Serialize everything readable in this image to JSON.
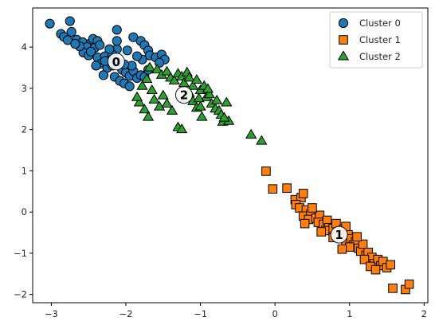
{
  "chart_data": {
    "type": "scatter",
    "title": "",
    "xlabel": "",
    "ylabel": "",
    "xlim": [
      -3.25,
      2.05
    ],
    "ylim": [
      -2.2,
      4.95
    ],
    "xticks": [
      -3,
      -2,
      -1,
      0,
      1,
      2
    ],
    "yticks": [
      -2,
      -1,
      0,
      1,
      2,
      3,
      4
    ],
    "grid": false,
    "legend": "top-right",
    "series": [
      {
        "name": "Cluster 0",
        "marker": "circle",
        "color": "#1f77b4",
        "points": [
          [
            -3.02,
            4.57
          ],
          [
            -2.75,
            4.63
          ],
          [
            -2.87,
            4.32
          ],
          [
            -2.83,
            4.25
          ],
          [
            -2.73,
            4.37
          ],
          [
            -2.78,
            4.17
          ],
          [
            -2.66,
            4.18
          ],
          [
            -2.58,
            4.12
          ],
          [
            -2.47,
            4.1
          ],
          [
            -2.44,
            4.2
          ],
          [
            -2.38,
            4.15
          ],
          [
            -2.52,
            4.0
          ],
          [
            -2.42,
            3.98
          ],
          [
            -2.35,
            4.05
          ],
          [
            -2.57,
            3.87
          ],
          [
            -2.5,
            3.8
          ],
          [
            -2.47,
            3.89
          ],
          [
            -2.38,
            3.75
          ],
          [
            -2.28,
            3.78
          ],
          [
            -2.2,
            3.72
          ],
          [
            -2.33,
            3.6
          ],
          [
            -2.25,
            3.5
          ],
          [
            -2.18,
            3.55
          ],
          [
            -2.1,
            3.62
          ],
          [
            -2.05,
            3.45
          ],
          [
            -2.0,
            3.38
          ],
          [
            -1.95,
            3.3
          ],
          [
            -1.9,
            3.42
          ],
          [
            -1.85,
            3.25
          ],
          [
            -1.8,
            3.32
          ],
          [
            -1.75,
            3.28
          ],
          [
            -2.15,
            3.28
          ],
          [
            -2.08,
            3.18
          ],
          [
            -2.02,
            3.12
          ],
          [
            -1.95,
            3.05
          ],
          [
            -2.3,
            3.32
          ],
          [
            -2.4,
            3.55
          ],
          [
            -2.12,
            3.95
          ],
          [
            -2.12,
            4.42
          ],
          [
            -2.12,
            4.15
          ],
          [
            -1.98,
            3.92
          ],
          [
            -1.9,
            4.24
          ],
          [
            -1.8,
            4.15
          ],
          [
            -1.75,
            4.05
          ],
          [
            -1.7,
            3.92
          ],
          [
            -1.68,
            3.8
          ],
          [
            -1.6,
            3.75
          ],
          [
            -1.52,
            3.82
          ],
          [
            -1.48,
            3.7
          ],
          [
            -1.55,
            3.62
          ],
          [
            -1.78,
            3.7
          ],
          [
            -1.7,
            3.45
          ],
          [
            -1.92,
            3.55
          ],
          [
            -1.85,
            3.78
          ],
          [
            -2.18,
            3.82
          ],
          [
            -2.22,
            3.95
          ],
          [
            -2.62,
            4.02
          ],
          [
            -2.68,
            4.08
          ],
          [
            -2.28,
            3.66
          ],
          [
            -2.02,
            3.58
          ]
        ]
      },
      {
        "name": "Cluster 1",
        "marker": "square",
        "color": "#ff7f0e",
        "points": [
          [
            -0.12,
            0.99
          ],
          [
            -0.03,
            0.56
          ],
          [
            0.16,
            0.58
          ],
          [
            0.27,
            0.3
          ],
          [
            0.35,
            0.35
          ],
          [
            0.38,
            0.45
          ],
          [
            0.28,
            0.18
          ],
          [
            0.33,
            0.1
          ],
          [
            0.42,
            0.05
          ],
          [
            0.38,
            -0.1
          ],
          [
            0.48,
            -0.05
          ],
          [
            0.45,
            -0.18
          ],
          [
            0.55,
            -0.15
          ],
          [
            0.6,
            -0.08
          ],
          [
            0.58,
            -0.25
          ],
          [
            0.65,
            -0.3
          ],
          [
            0.7,
            -0.2
          ],
          [
            0.72,
            -0.38
          ],
          [
            0.68,
            -0.45
          ],
          [
            0.78,
            -0.4
          ],
          [
            0.82,
            -0.28
          ],
          [
            0.85,
            -0.5
          ],
          [
            0.88,
            -0.6
          ],
          [
            0.92,
            -0.42
          ],
          [
            0.95,
            -0.7
          ],
          [
            0.98,
            -0.55
          ],
          [
            1.02,
            -0.65
          ],
          [
            1.05,
            -0.8
          ],
          [
            1.08,
            -0.72
          ],
          [
            1.12,
            -0.88
          ],
          [
            1.15,
            -0.95
          ],
          [
            1.18,
            -0.78
          ],
          [
            1.22,
            -1.05
          ],
          [
            1.25,
            -0.98
          ],
          [
            1.3,
            -1.1
          ],
          [
            1.33,
            -1.25
          ],
          [
            1.38,
            -1.15
          ],
          [
            1.42,
            -1.3
          ],
          [
            1.45,
            -1.2
          ],
          [
            1.5,
            -1.35
          ],
          [
            1.55,
            -1.28
          ],
          [
            1.58,
            -1.85
          ],
          [
            1.75,
            -1.88
          ],
          [
            1.8,
            -1.75
          ],
          [
            0.95,
            -0.35
          ],
          [
            1.0,
            -0.85
          ],
          [
            0.78,
            -0.62
          ],
          [
            0.62,
            -0.48
          ],
          [
            0.5,
            0.1
          ],
          [
            0.4,
            -0.28
          ],
          [
            1.1,
            -0.6
          ],
          [
            1.2,
            -1.15
          ],
          [
            1.28,
            -1.32
          ],
          [
            0.9,
            -0.9
          ],
          [
            1.35,
            -1.4
          ]
        ]
      },
      {
        "name": "Cluster 2",
        "marker": "triangle",
        "color": "#2ca02c",
        "points": [
          [
            -1.72,
            3.22
          ],
          [
            -1.68,
            3.5
          ],
          [
            -1.58,
            3.45
          ],
          [
            -1.52,
            3.32
          ],
          [
            -1.45,
            3.4
          ],
          [
            -1.4,
            3.25
          ],
          [
            -1.35,
            3.18
          ],
          [
            -1.3,
            3.35
          ],
          [
            -1.25,
            3.28
          ],
          [
            -1.22,
            3.12
          ],
          [
            -1.18,
            3.38
          ],
          [
            -1.15,
            3.25
          ],
          [
            -1.1,
            3.05
          ],
          [
            -1.05,
            3.2
          ],
          [
            -1.0,
            2.95
          ],
          [
            -0.95,
            3.05
          ],
          [
            -0.92,
            2.78
          ],
          [
            -0.88,
            2.85
          ],
          [
            -0.85,
            2.62
          ],
          [
            -0.8,
            2.5
          ],
          [
            -0.78,
            2.7
          ],
          [
            -0.75,
            2.45
          ],
          [
            -0.72,
            2.35
          ],
          [
            -0.7,
            2.18
          ],
          [
            -0.65,
            2.65
          ],
          [
            -0.62,
            2.2
          ],
          [
            -0.68,
            2.28
          ],
          [
            -1.82,
            2.65
          ],
          [
            -1.85,
            2.78
          ],
          [
            -1.75,
            2.48
          ],
          [
            -1.7,
            2.3
          ],
          [
            -1.62,
            2.72
          ],
          [
            -1.55,
            2.55
          ],
          [
            -1.5,
            2.82
          ],
          [
            -1.45,
            2.62
          ],
          [
            -1.38,
            2.45
          ],
          [
            -1.3,
            2.05
          ],
          [
            -1.25,
            2.0
          ],
          [
            -1.2,
            2.75
          ],
          [
            -1.15,
            2.88
          ],
          [
            -1.1,
            2.68
          ],
          [
            -1.05,
            2.52
          ],
          [
            -1.0,
            2.55
          ],
          [
            -0.98,
            2.3
          ],
          [
            -0.9,
            2.98
          ],
          [
            -0.32,
            1.87
          ],
          [
            -0.18,
            1.72
          ],
          [
            -1.65,
            2.95
          ],
          [
            -1.78,
            3.05
          ],
          [
            -1.02,
            2.75
          ]
        ]
      }
    ],
    "centers": [
      {
        "label": "0",
        "x": -2.13,
        "y": 3.65
      },
      {
        "label": "1",
        "x": 0.86,
        "y": -0.55
      },
      {
        "label": "2",
        "x": -1.22,
        "y": 2.84
      }
    ]
  }
}
